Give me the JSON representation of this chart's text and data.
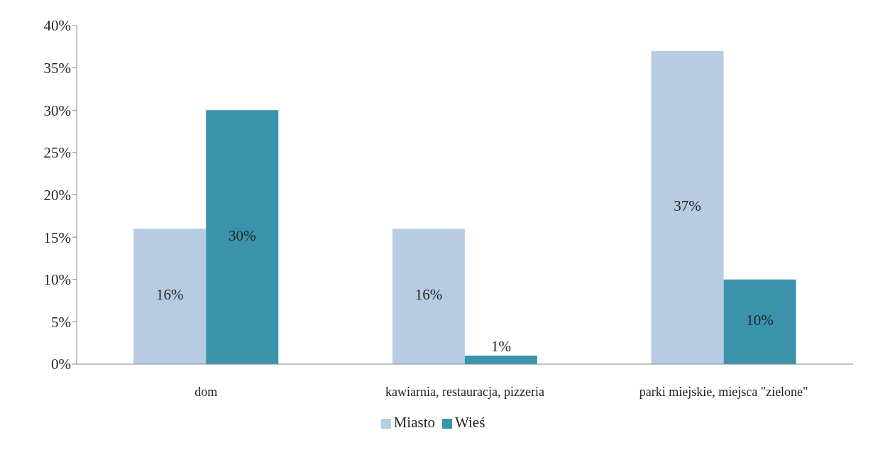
{
  "chart_data": {
    "type": "bar",
    "categories": [
      "dom",
      "kawiarnia, restauracja, pizzeria",
      "parki miejskie, miejsca \"zielone\""
    ],
    "series": [
      {
        "name": "Miasto",
        "color": "#b7cbe2",
        "values": [
          16,
          16,
          37
        ],
        "value_labels": [
          "16%",
          "16%",
          "37%"
        ]
      },
      {
        "name": "Wieś",
        "color": "#3a93aa",
        "values": [
          30,
          1,
          10
        ],
        "value_labels": [
          "30%",
          "1%",
          "10%"
        ]
      }
    ],
    "ylim": [
      0,
      40
    ],
    "yticks": [
      {
        "value": 0,
        "label": "0%"
      },
      {
        "value": 5,
        "label": "5%"
      },
      {
        "value": 10,
        "label": "10%"
      },
      {
        "value": 15,
        "label": "15%"
      },
      {
        "value": 20,
        "label": "20%"
      },
      {
        "value": 25,
        "label": "25%"
      },
      {
        "value": 30,
        "label": "30%"
      },
      {
        "value": 35,
        "label": "35%"
      },
      {
        "value": 40,
        "label": "40%"
      }
    ],
    "grid": false,
    "legend": "bottom"
  }
}
